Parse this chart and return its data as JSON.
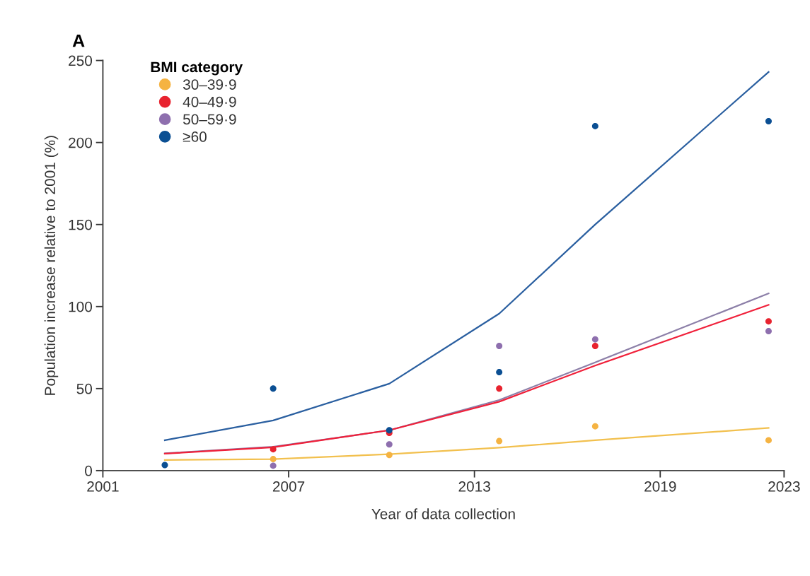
{
  "chart_data": {
    "type": "scatter",
    "title": "A",
    "xlabel": "Year of data collection",
    "ylabel": "Population increase relative to 2001 (%)",
    "legend_title": "BMI category",
    "legend": "top left",
    "grid": false,
    "xlim": [
      2001,
      2023
    ],
    "xticks": [
      2001,
      2007,
      2013,
      2019,
      2023
    ],
    "ylim": [
      0,
      250
    ],
    "yticks": [
      0,
      50,
      100,
      150,
      200,
      250
    ],
    "series": [
      {
        "type": "line",
        "color": "#f2c04e",
        "x": [
          2003,
          2006.5,
          2010.25,
          2013.8,
          2016.9,
          2022.5
        ],
        "values": [
          6.5,
          7,
          10,
          14,
          18.5,
          26
        ]
      },
      {
        "type": "line",
        "color": "#8c7fa8",
        "x": [
          2003,
          2006.5,
          2010.25,
          2013.8,
          2016.9,
          2022.5
        ],
        "values": [
          10.5,
          14.5,
          24.6,
          43,
          66,
          108
        ]
      },
      {
        "type": "line",
        "color": "#f0203a",
        "x": [
          2003,
          2006.5,
          2010.25,
          2013.8,
          2016.9,
          2022.5
        ],
        "values": [
          10.3,
          14.2,
          24.6,
          42,
          64,
          101
        ]
      },
      {
        "type": "line",
        "color": "#2a5fa0",
        "x": [
          2003,
          2006.5,
          2010.25,
          2013.8,
          2016.9,
          2022.5
        ],
        "values": [
          18.5,
          30.6,
          53,
          95.7,
          150,
          243
        ]
      },
      {
        "marker": "circle",
        "name": "30–39·9",
        "color": "#f5b342",
        "x": [
          2006.5,
          2010.25,
          2013.8,
          2016.9,
          2022.5
        ],
        "values": [
          7,
          9.5,
          18,
          27,
          18.5
        ]
      },
      {
        "marker": "circle",
        "name": "40–49·9",
        "color": "#e8232f",
        "x": [
          2006.5,
          2010.25,
          2013.8,
          2016.9,
          2022.5
        ],
        "values": [
          13,
          23,
          50,
          76,
          91
        ]
      },
      {
        "marker": "circle",
        "name": "50–59·9",
        "color": "#8e6fae",
        "x": [
          2006.5,
          2010.25,
          2013.8,
          2016.9,
          2022.5
        ],
        "values": [
          3,
          16,
          76,
          80,
          85
        ]
      },
      {
        "marker": "circle",
        "name": "≥60",
        "color": "#0b4f93",
        "x": [
          2003,
          2006.5,
          2010.25,
          2013.8,
          2016.9,
          2022.5
        ],
        "values": [
          3.4,
          50,
          24.6,
          60,
          210,
          213
        ]
      }
    ]
  }
}
